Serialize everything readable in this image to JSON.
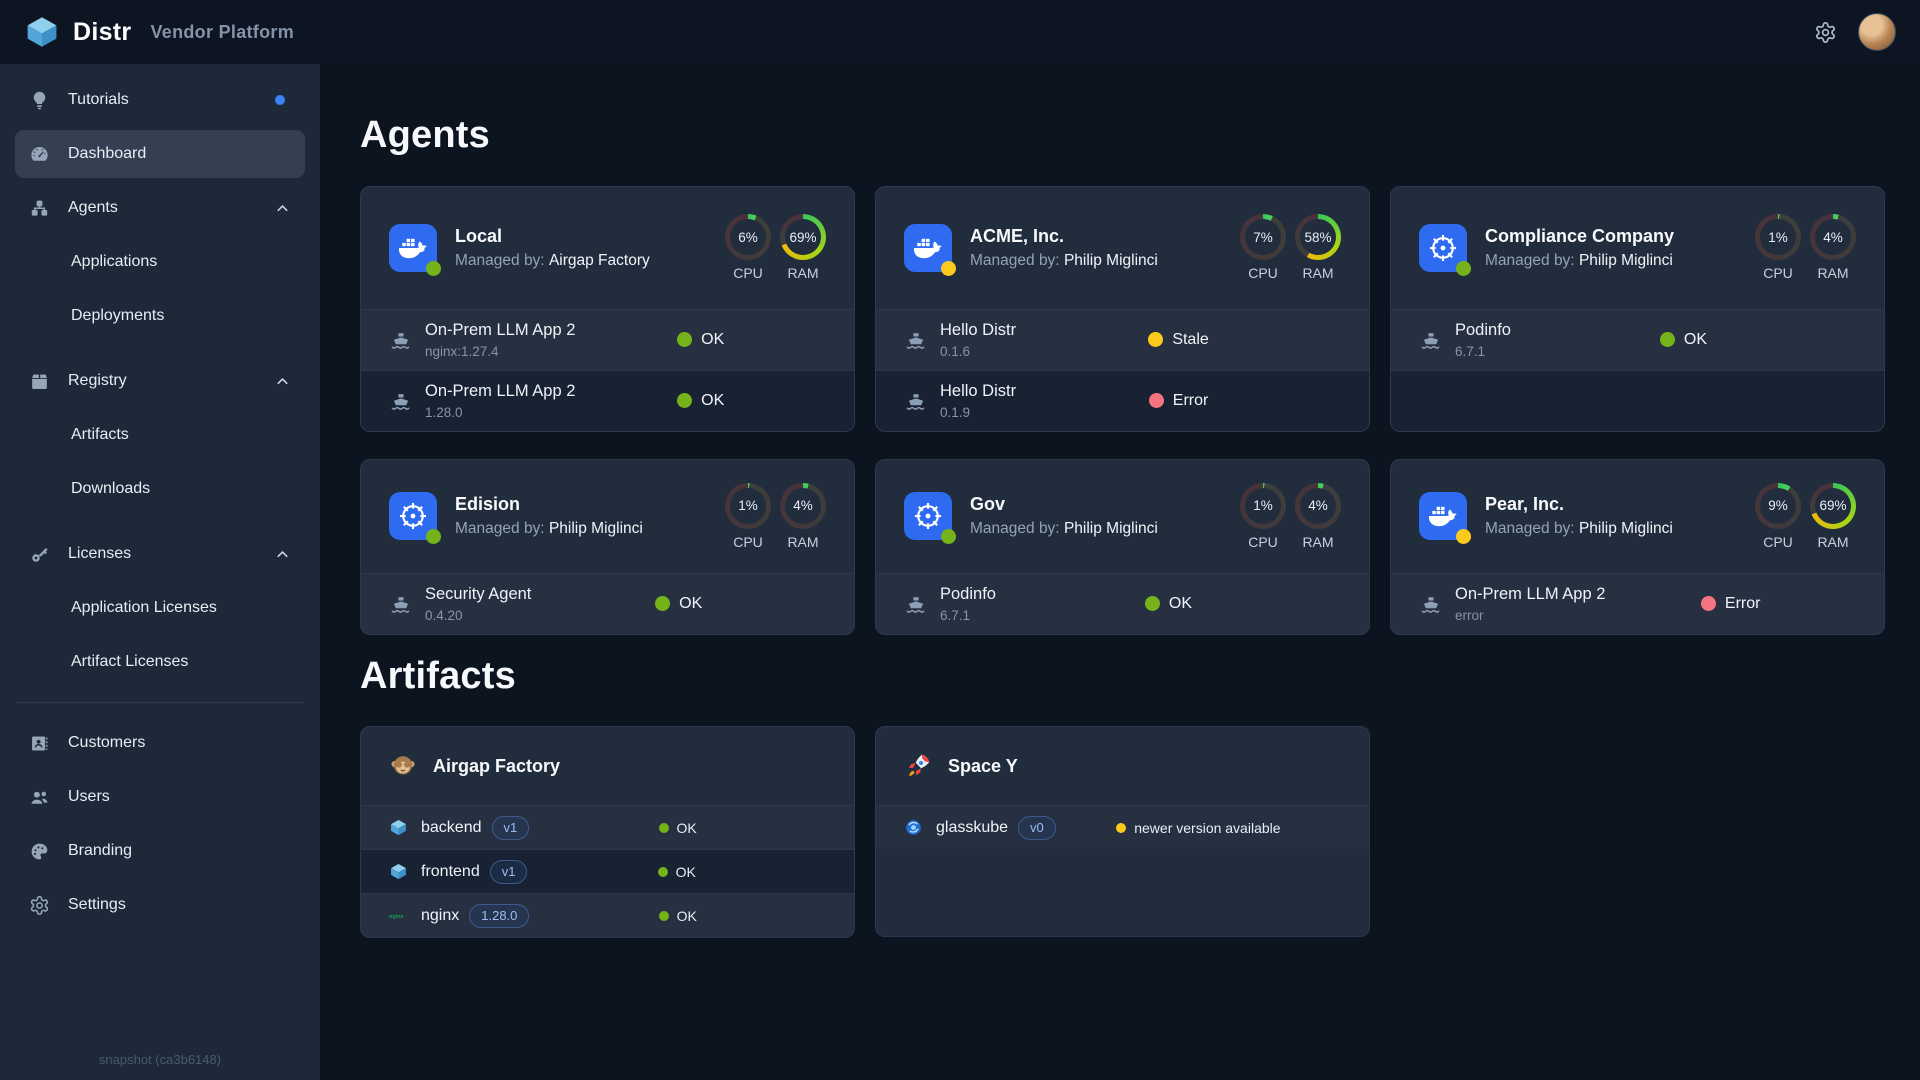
{
  "header": {
    "app_name": "Distr",
    "subtitle": "Vendor Platform"
  },
  "colors": {
    "green": "#76b31a",
    "yellow": "#fcc91d",
    "red": "#f4747f",
    "blue": "#2f6bf0",
    "notification_blue": "#3b82f6"
  },
  "sidebar": {
    "items": [
      {
        "id": "tutorials",
        "label": "Tutorials",
        "icon": "lightbulb",
        "badge_dot": true
      },
      {
        "id": "dashboard",
        "label": "Dashboard",
        "icon": "dashboard",
        "active": true
      },
      {
        "id": "agents",
        "label": "Agents",
        "icon": "agents",
        "chevron": "up"
      },
      {
        "id": "applications",
        "label": "Applications",
        "sub": true
      },
      {
        "id": "deployments",
        "label": "Deployments",
        "sub": true
      },
      {
        "id": "registry",
        "label": "Registry",
        "icon": "registry",
        "chevron": "up",
        "section_gap": true
      },
      {
        "id": "artifacts",
        "label": "Artifacts",
        "sub": true
      },
      {
        "id": "downloads",
        "label": "Downloads",
        "sub": true
      },
      {
        "id": "licenses",
        "label": "Licenses",
        "icon": "key",
        "chevron": "up",
        "section_gap": true
      },
      {
        "id": "application-licenses",
        "label": "Application Licenses",
        "sub": true
      },
      {
        "id": "artifact-licenses",
        "label": "Artifact Licenses",
        "sub": true
      },
      {
        "id": "divider-1",
        "divider": true
      },
      {
        "id": "customers",
        "label": "Customers",
        "icon": "idcard"
      },
      {
        "id": "users",
        "label": "Users",
        "icon": "users"
      },
      {
        "id": "branding",
        "label": "Branding",
        "icon": "palette"
      },
      {
        "id": "settings",
        "label": "Settings",
        "icon": "gear"
      }
    ],
    "snapshot": "snapshot (ca3b6148)"
  },
  "main": {
    "agents_title": "Agents",
    "artifacts_title": "Artifacts",
    "managed_by_label": "Managed by:",
    "cpu_label": "CPU",
    "ram_label": "RAM",
    "agents": [
      {
        "name": "Local",
        "managed_by": "Airgap Factory",
        "platform": "docker",
        "status_color": "green",
        "cpu_pct": 6,
        "ram_pct": 69,
        "row_slots": 2,
        "deployments": [
          {
            "name": "On-Prem LLM App 2",
            "version": "nginx:1.27.4",
            "status": "OK",
            "color": "green"
          },
          {
            "name": "On-Prem LLM App 2",
            "version": "1.28.0",
            "status": "OK",
            "color": "green"
          }
        ]
      },
      {
        "name": "ACME, Inc.",
        "managed_by": "Philip Miglinci",
        "platform": "docker",
        "status_color": "yellow",
        "cpu_pct": 7,
        "ram_pct": 58,
        "row_slots": 2,
        "deployments": [
          {
            "name": "Hello Distr",
            "version": "0.1.6",
            "status": "Stale",
            "color": "yellow"
          },
          {
            "name": "Hello Distr",
            "version": "0.1.9",
            "status": "Error",
            "color": "red"
          }
        ]
      },
      {
        "name": "Compliance Company",
        "managed_by": "Philip Miglinci",
        "platform": "kubernetes",
        "status_color": "green",
        "cpu_pct": 1,
        "ram_pct": 4,
        "row_slots": 2,
        "deployments": [
          {
            "name": "Podinfo",
            "version": "6.7.1",
            "status": "OK",
            "color": "green"
          }
        ]
      },
      {
        "name": "Edision",
        "managed_by": "Philip Miglinci",
        "platform": "kubernetes",
        "status_color": "green",
        "cpu_pct": 1,
        "ram_pct": 4,
        "row_slots": 1,
        "deployments": [
          {
            "name": "Security Agent",
            "version": "0.4.20",
            "status": "OK",
            "color": "green"
          }
        ]
      },
      {
        "name": "Gov",
        "managed_by": "Philip Miglinci",
        "platform": "kubernetes",
        "status_color": "green",
        "cpu_pct": 1,
        "ram_pct": 4,
        "row_slots": 1,
        "deployments": [
          {
            "name": "Podinfo",
            "version": "6.7.1",
            "status": "OK",
            "color": "green"
          }
        ]
      },
      {
        "name": "Pear, Inc.",
        "managed_by": "Philip Miglinci",
        "platform": "docker",
        "status_color": "yellow",
        "cpu_pct": 9,
        "ram_pct": 69,
        "row_slots": 1,
        "deployments": [
          {
            "name": "On-Prem LLM App 2",
            "version": "error",
            "status": "Error",
            "color": "red"
          }
        ]
      }
    ],
    "artifact_groups": [
      {
        "name": "Airgap Factory",
        "icon": "monkey",
        "artifacts": [
          {
            "name": "backend",
            "version": "v1",
            "icon": "cube",
            "status": "OK",
            "color": "green"
          },
          {
            "name": "frontend",
            "version": "v1",
            "icon": "cube",
            "status": "OK",
            "color": "green"
          },
          {
            "name": "nginx",
            "version": "1.28.0",
            "icon": "nginx",
            "status": "OK",
            "color": "green"
          }
        ]
      },
      {
        "name": "Space Y",
        "icon": "rocket",
        "artifacts": [
          {
            "name": "glasskube",
            "version": "v0",
            "icon": "globe",
            "status": "newer version available",
            "color": "yellow"
          }
        ]
      }
    ]
  }
}
